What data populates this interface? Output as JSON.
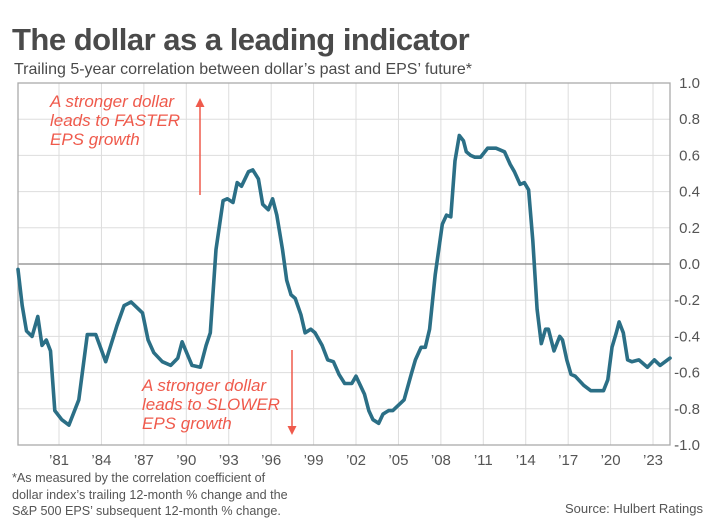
{
  "title": "The dollar as a leading indicator",
  "subtitle": "Trailing 5-year correlation between dollar’s past and EPS’ future*",
  "footnote": [
    "*As measured by the correlation coefficient of",
    "dollar index’s trailing 12-month % change and the",
    "S&P 500 EPS’ subsequent 12-month % change."
  ],
  "source": "Source: Hulbert Ratings",
  "colors": {
    "line": "#2b6f86",
    "annotation": "#ef5a4c",
    "grid": "#dddddd",
    "zero_line": "#888888"
  },
  "chart_data": {
    "type": "line",
    "title": "The dollar as a leading indicator",
    "subtitle": "Trailing 5-year correlation between dollar’s past and EPS’ future*",
    "xlabel": "",
    "ylabel": "",
    "xlim": [
      1978.1,
      2024.2
    ],
    "ylim": [
      -1.0,
      1.0
    ],
    "grid": true,
    "y_axis_side": "right",
    "x_ticks": [
      1981,
      1984,
      1987,
      1990,
      1993,
      1996,
      1999,
      2002,
      2005,
      2008,
      2011,
      2014,
      2017,
      2020,
      2023
    ],
    "x_tick_labels": [
      "’81",
      "’84",
      "’87",
      "’90",
      "’93",
      "’96",
      "’99",
      "’02",
      "’05",
      "’08",
      "’11",
      "’14",
      "’17",
      "’20",
      "’23"
    ],
    "y_ticks": [
      1.0,
      0.8,
      0.6,
      0.4,
      0.2,
      0.0,
      -0.2,
      -0.4,
      -0.6,
      -0.8,
      -1.0
    ],
    "y_tick_labels": [
      "1.0",
      "0.8",
      "0.6",
      "0.4",
      "0.2",
      "0.0",
      "-0.2",
      "-0.4",
      "-0.6",
      "-0.8",
      "-1.0"
    ],
    "series": [
      {
        "name": "Trailing 5-year correlation",
        "x": [
          1978.1,
          1978.4,
          1978.7,
          1979.1,
          1979.5,
          1979.8,
          1980.1,
          1980.4,
          1980.7,
          1981.2,
          1981.7,
          1982.4,
          1983.0,
          1983.6,
          1984.3,
          1985.1,
          1985.6,
          1986.1,
          1986.5,
          1986.9,
          1987.3,
          1987.7,
          1988.3,
          1988.9,
          1989.4,
          1989.7,
          1990.4,
          1991.0,
          1991.4,
          1991.7,
          1992.1,
          1992.6,
          1992.9,
          1993.3,
          1993.6,
          1993.9,
          1994.4,
          1994.7,
          1995.1,
          1995.4,
          1995.8,
          1996.1,
          1996.4,
          1996.8,
          1997.1,
          1997.4,
          1997.7,
          1998.1,
          1998.4,
          1998.8,
          1999.1,
          1999.6,
          2000.0,
          2000.4,
          2000.8,
          2001.2,
          2001.7,
          2002.0,
          2002.3,
          2002.6,
          2002.9,
          2003.2,
          2003.6,
          2003.9,
          2004.1,
          2004.3,
          2004.6,
          2005.4,
          2005.9,
          2006.2,
          2006.6,
          2006.9,
          2007.2,
          2007.6,
          2008.1,
          2008.4,
          2008.7,
          2009.0,
          2009.3,
          2009.6,
          2009.8,
          2010.1,
          2010.4,
          2010.8,
          2011.3,
          2011.9,
          2012.5,
          2012.9,
          2013.2,
          2013.6,
          2013.9,
          2014.2,
          2014.5,
          2014.8,
          2015.1,
          2015.4,
          2015.6,
          2016.0,
          2016.4,
          2016.6,
          2016.9,
          2017.2,
          2017.5,
          2018.1,
          2018.6,
          2019.1,
          2019.5,
          2019.8,
          2020.1,
          2020.4,
          2020.6,
          2020.9,
          2021.2,
          2021.5,
          2022.0,
          2022.6,
          2023.1,
          2023.5,
          2024.2
        ],
        "y": [
          -0.03,
          -0.23,
          -0.37,
          -0.4,
          -0.29,
          -0.45,
          -0.42,
          -0.48,
          -0.81,
          -0.86,
          -0.89,
          -0.75,
          -0.39,
          -0.39,
          -0.54,
          -0.34,
          -0.23,
          -0.21,
          -0.24,
          -0.27,
          -0.42,
          -0.49,
          -0.54,
          -0.56,
          -0.52,
          -0.43,
          -0.56,
          -0.57,
          -0.45,
          -0.38,
          0.08,
          0.35,
          0.36,
          0.34,
          0.45,
          0.43,
          0.51,
          0.52,
          0.47,
          0.33,
          0.3,
          0.36,
          0.27,
          0.08,
          -0.09,
          -0.17,
          -0.19,
          -0.28,
          -0.38,
          -0.36,
          -0.38,
          -0.45,
          -0.53,
          -0.54,
          -0.61,
          -0.66,
          -0.66,
          -0.62,
          -0.67,
          -0.72,
          -0.81,
          -0.86,
          -0.88,
          -0.83,
          -0.82,
          -0.81,
          -0.81,
          -0.75,
          -0.61,
          -0.53,
          -0.46,
          -0.46,
          -0.36,
          -0.06,
          0.22,
          0.27,
          0.26,
          0.57,
          0.71,
          0.68,
          0.62,
          0.6,
          0.59,
          0.59,
          0.64,
          0.64,
          0.62,
          0.55,
          0.51,
          0.44,
          0.45,
          0.41,
          0.13,
          -0.25,
          -0.44,
          -0.36,
          -0.36,
          -0.48,
          -0.4,
          -0.42,
          -0.53,
          -0.61,
          -0.62,
          -0.67,
          -0.7,
          -0.7,
          -0.7,
          -0.64,
          -0.46,
          -0.38,
          -0.32,
          -0.38,
          -0.53,
          -0.54,
          -0.53,
          -0.57,
          -0.53,
          -0.56,
          -0.52
        ]
      }
    ],
    "annotations": [
      {
        "text": [
          "A stronger dollar",
          "leads to FASTER",
          "EPS growth"
        ],
        "arrow": "up",
        "region": "top-left"
      },
      {
        "text": [
          "A stronger dollar",
          "leads to SLOWER",
          "EPS growth"
        ],
        "arrow": "down",
        "region": "bottom-left"
      }
    ]
  }
}
